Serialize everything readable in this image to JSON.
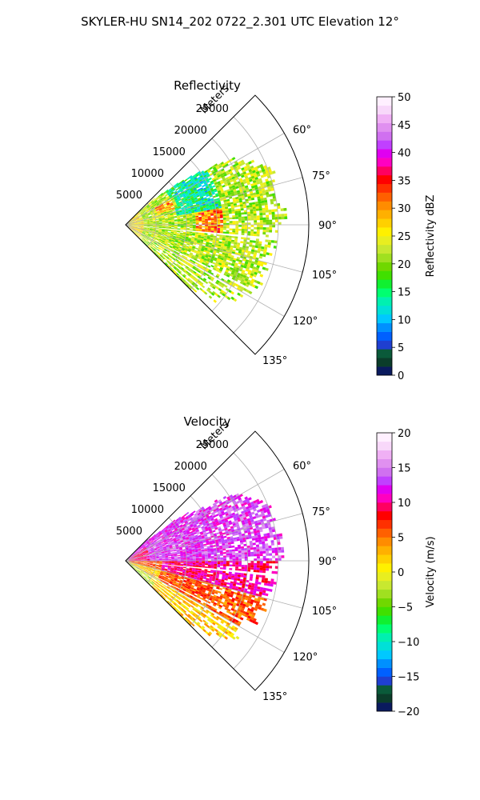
{
  "suptitle": "SKYLER-HU  SN14_202  0722_2.301 UTC Elevation 12°",
  "chart_data": [
    {
      "type": "heatmap",
      "title": "Reflectivity",
      "projection": "polar-sector",
      "range_label": "Meters",
      "range_ticks": [
        5000,
        10000,
        15000,
        20000,
        25000
      ],
      "range_tick_labels": [
        "5000",
        "10000",
        "15000",
        "20000",
        "25000"
      ],
      "rlim": [
        0,
        30000
      ],
      "theta_range_deg": [
        45,
        135
      ],
      "theta_ticks_deg": [
        60,
        75,
        90,
        105,
        120,
        135
      ],
      "theta_tick_labels": [
        "60°",
        "75°",
        "90°",
        "105°",
        "120°",
        "135°"
      ],
      "grid": true,
      "colorbar": {
        "label": "Reflectivity dBZ",
        "range": [
          0,
          50
        ],
        "ticks": [
          0,
          5,
          10,
          15,
          20,
          25,
          30,
          35,
          40,
          45,
          50
        ],
        "tick_labels": [
          "0",
          "5",
          "10",
          "15",
          "20",
          "25",
          "30",
          "35",
          "40",
          "45",
          "50"
        ],
        "colors": [
          "#0a1a5e",
          "#0b3d2a",
          "#0a5a3a",
          "#1f3fd0",
          "#0060ff",
          "#0090ff",
          "#00c8ff",
          "#00e0d8",
          "#00f0b0",
          "#00ff70",
          "#10f030",
          "#40e000",
          "#70d800",
          "#a0e020",
          "#c8e830",
          "#e8ee20",
          "#fff000",
          "#ffd000",
          "#ffb000",
          "#ff8c00",
          "#ff6000",
          "#ff3000",
          "#ff0000",
          "#ff0060",
          "#ff00c0",
          "#e000f0",
          "#c040ff",
          "#d070f0",
          "#e090f0",
          "#f0b0f5",
          "#f8d8fa",
          "#fff0ff"
        ]
      }
    },
    {
      "type": "heatmap",
      "title": "Velocity",
      "projection": "polar-sector",
      "range_label": "Meters",
      "range_ticks": [
        5000,
        10000,
        15000,
        20000,
        25000
      ],
      "range_tick_labels": [
        "5000",
        "10000",
        "15000",
        "20000",
        "25000"
      ],
      "rlim": [
        0,
        30000
      ],
      "theta_range_deg": [
        45,
        135
      ],
      "theta_ticks_deg": [
        60,
        75,
        90,
        105,
        120,
        135
      ],
      "theta_tick_labels": [
        "60°",
        "75°",
        "90°",
        "105°",
        "120°",
        "135°"
      ],
      "grid": true,
      "colorbar": {
        "label": "Velocity (m/s)",
        "range": [
          -20,
          20
        ],
        "ticks": [
          -20,
          -15,
          -10,
          -5,
          0,
          5,
          10,
          15,
          20
        ],
        "tick_labels": [
          "−20",
          "−15",
          "−10",
          "−5",
          "0",
          "5",
          "10",
          "15",
          "20"
        ],
        "colors": [
          "#0a1a5e",
          "#0b3d2a",
          "#0a5a3a",
          "#1f3fd0",
          "#0060ff",
          "#0090ff",
          "#00c8ff",
          "#00e0d8",
          "#00f0b0",
          "#00ff70",
          "#10f030",
          "#40e000",
          "#70d800",
          "#a0e020",
          "#c8e830",
          "#e8ee20",
          "#fff000",
          "#ffd000",
          "#ffb000",
          "#ff8c00",
          "#ff6000",
          "#ff3000",
          "#ff0000",
          "#ff0060",
          "#ff00c0",
          "#e000f0",
          "#c040ff",
          "#d070f0",
          "#e090f0",
          "#f0b0f5",
          "#f8d8fa",
          "#fff0ff"
        ]
      }
    }
  ]
}
